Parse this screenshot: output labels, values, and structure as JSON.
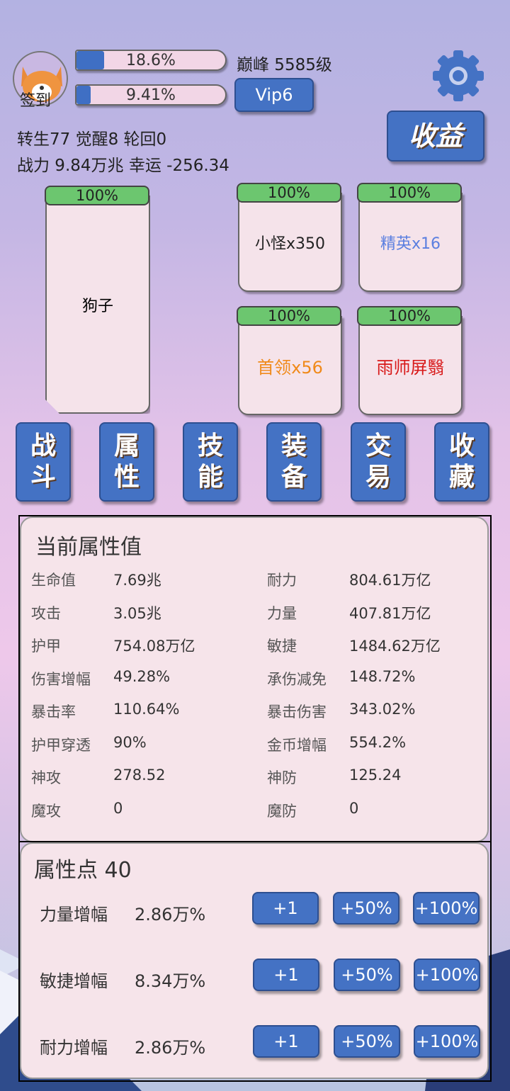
{
  "header": {
    "signin_label": "签到",
    "exp_percent": "18.6%",
    "exp_fill": 0.186,
    "level_label": "巅峰 5585级",
    "vip_percent": "9.41%",
    "vip_fill": 0.0941,
    "vip_label": "Vip6",
    "income_label": "收益",
    "settings_icon": "gear-icon",
    "avatar_icon": "corgi-avatar"
  },
  "stats": {
    "line1": "转生77 觉醒8 轮回0",
    "line2": "战力 9.84万兆  幸运 -256.34"
  },
  "player": {
    "hp": "100%",
    "name": "狗子"
  },
  "enemies": [
    {
      "hp": "100%",
      "name": "小怪x350",
      "color": "#222222"
    },
    {
      "hp": "100%",
      "name": "精英x16",
      "color": "#5b7fe0"
    },
    {
      "hp": "100%",
      "name": "首领x56",
      "color": "#f08a1a"
    },
    {
      "hp": "100%",
      "name": "雨师屏翳",
      "color": "#d81818"
    }
  ],
  "nav": [
    [
      "战",
      "斗"
    ],
    [
      "属",
      "性"
    ],
    [
      "技",
      "能"
    ],
    [
      "装",
      "备"
    ],
    [
      "交",
      "易"
    ],
    [
      "收",
      "藏"
    ]
  ],
  "attributes": {
    "title": "当前属性值",
    "rows": [
      [
        "生命值",
        "7.69兆",
        "耐力",
        "804.61万亿"
      ],
      [
        "攻击",
        "3.05兆",
        "力量",
        "407.81万亿"
      ],
      [
        "护甲",
        "754.08万亿",
        "敏捷",
        "1484.62万亿"
      ],
      [
        "伤害增幅",
        "49.28%",
        "承伤减免",
        "148.72%"
      ],
      [
        "暴击率",
        "110.64%",
        "暴击伤害",
        "343.02%"
      ],
      [
        "护甲穿透",
        "90%",
        "金币增幅",
        "554.2%"
      ],
      [
        "神攻",
        "278.52",
        "神防",
        "125.24"
      ],
      [
        "魔攻",
        "0",
        "魔防",
        "0"
      ]
    ]
  },
  "points": {
    "title": "属性点 40",
    "rows": [
      {
        "label": "力量增幅",
        "value": "2.86万%"
      },
      {
        "label": "敏捷增幅",
        "value": "8.34万%"
      },
      {
        "label": "耐力增幅",
        "value": "2.86万%"
      }
    ],
    "buttons": [
      "+1",
      "+50%",
      "+100%"
    ]
  }
}
